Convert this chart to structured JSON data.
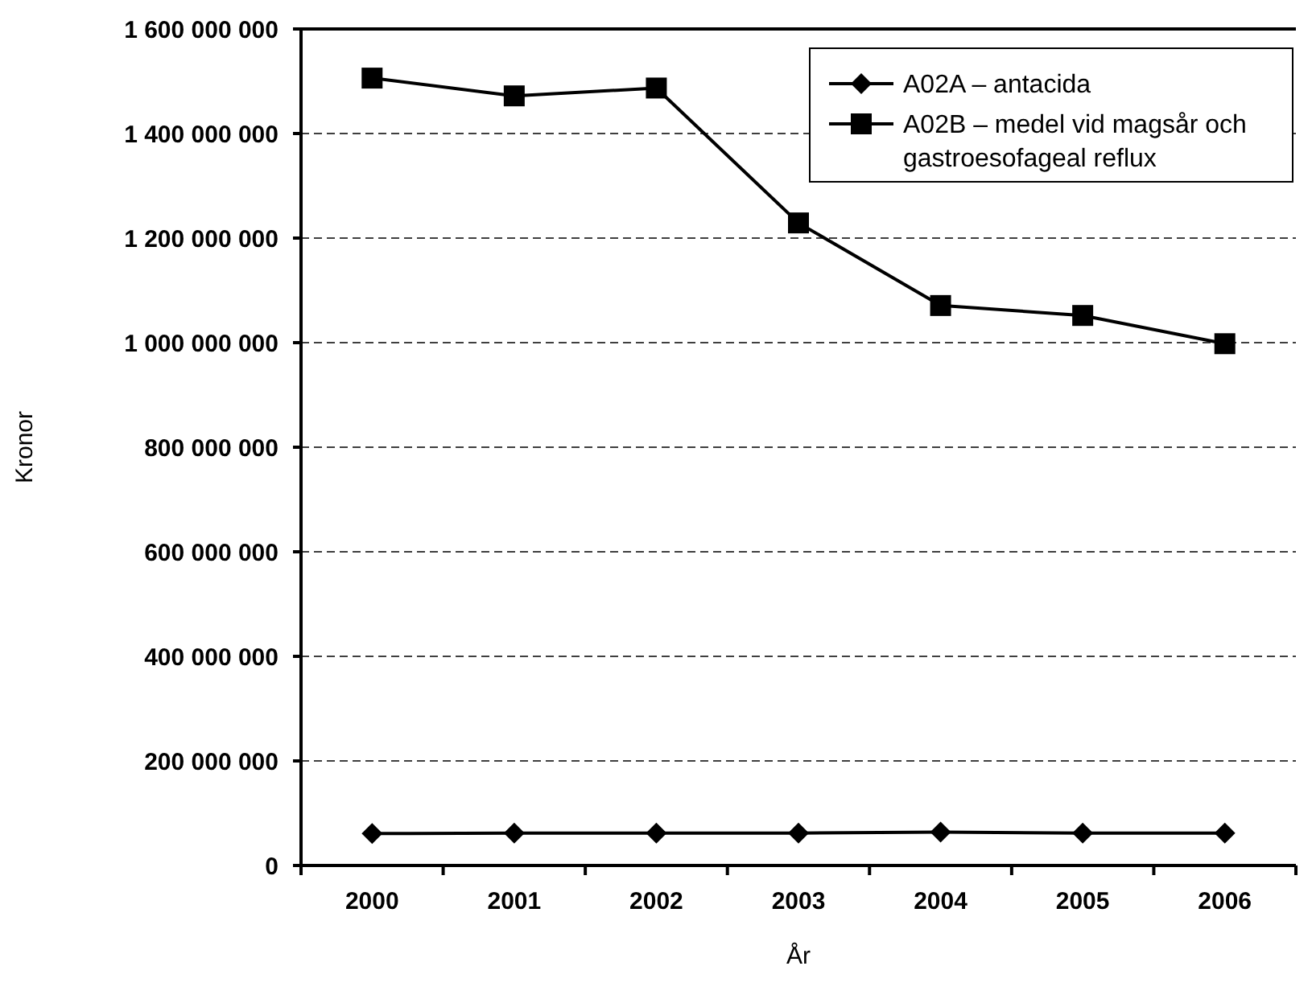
{
  "chart_data": {
    "type": "line",
    "xlabel": "År",
    "ylabel": "Kronor",
    "categories": [
      "2000",
      "2001",
      "2002",
      "2003",
      "2004",
      "2005",
      "2006"
    ],
    "series": [
      {
        "name": "A02A – antacida",
        "color": "#000000",
        "marker": "diamond",
        "values": [
          61000000,
          62000000,
          62000000,
          62000000,
          64000000,
          62000000,
          62000000
        ]
      },
      {
        "name": "A02B – medel vid magsår och gastroesofageal reflux",
        "color": "#000000",
        "marker": "square",
        "values": [
          1506000000,
          1472000000,
          1487000000,
          1229000000,
          1071000000,
          1052000000,
          998000000
        ]
      }
    ],
    "ylim": [
      0,
      1600000000
    ],
    "yticks": [
      {
        "value": 0,
        "label": "0"
      },
      {
        "value": 200000000,
        "label": "200 000 000"
      },
      {
        "value": 400000000,
        "label": "400 000 000"
      },
      {
        "value": 600000000,
        "label": "600 000 000"
      },
      {
        "value": 800000000,
        "label": "800 000 000"
      },
      {
        "value": 1000000000,
        "label": "1 000 000 000"
      },
      {
        "value": 1200000000,
        "label": "1 200 000 000"
      },
      {
        "value": 1400000000,
        "label": "1 400 000 000"
      },
      {
        "value": 1600000000,
        "label": "1 600 000 000"
      }
    ],
    "grid": "y",
    "legend": "top right",
    "line_style": "solid"
  }
}
